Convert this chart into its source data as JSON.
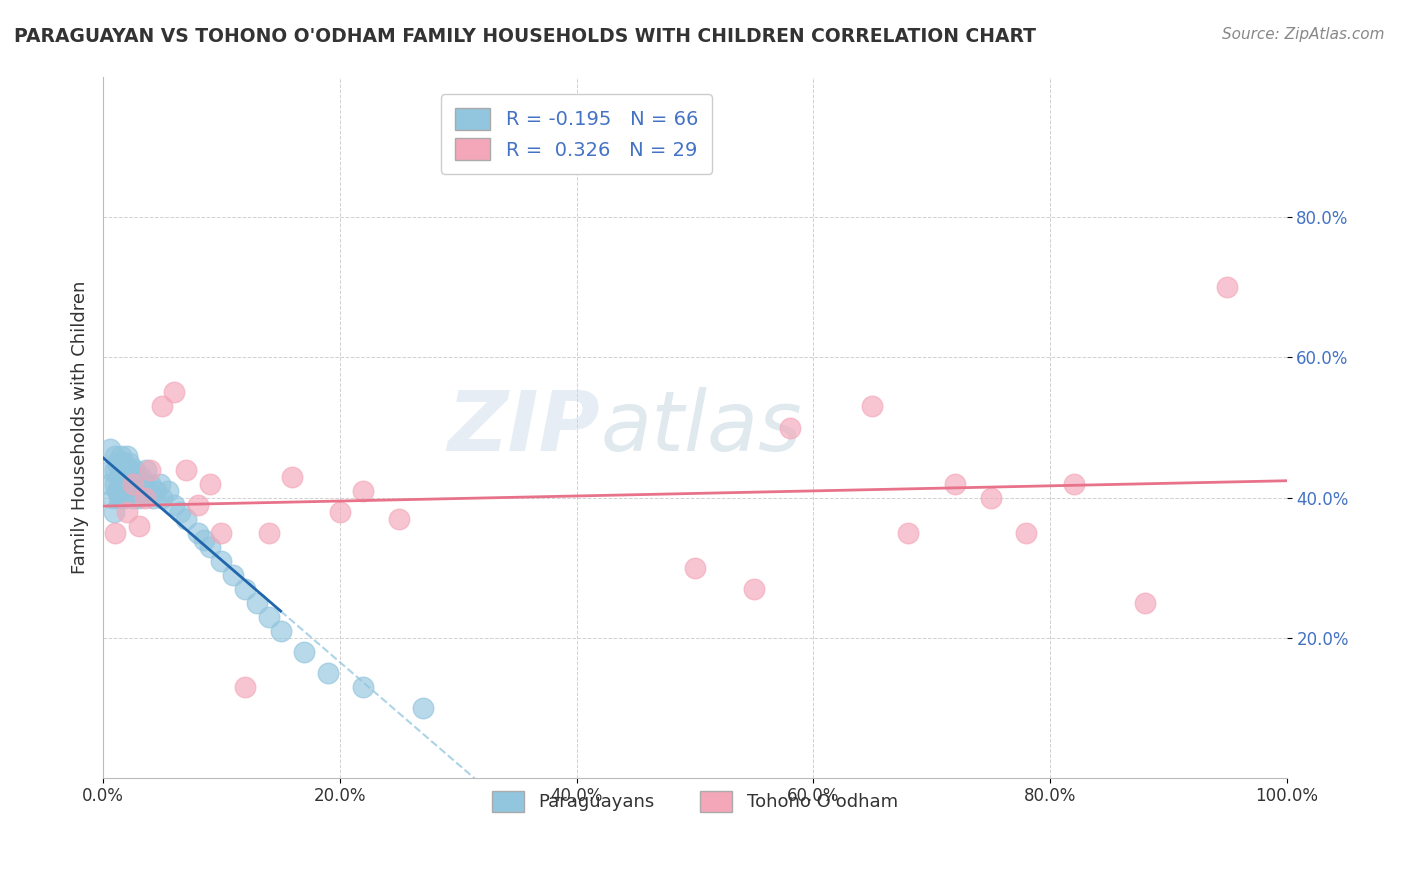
{
  "title": "PARAGUAYAN VS TOHONO O'ODHAM FAMILY HOUSEHOLDS WITH CHILDREN CORRELATION CHART",
  "source": "Source: ZipAtlas.com",
  "ylabel": "Family Households with Children",
  "xlabel": "",
  "legend_label_1": "Paraguayans",
  "legend_label_2": "Tohono O'odham",
  "R1": -0.195,
  "N1": 66,
  "R2": 0.326,
  "N2": 29,
  "blue_color": "#92c5de",
  "pink_color": "#f4a7b9",
  "blue_line_color": "#2166ac",
  "pink_line_color": "#e8728a",
  "dashed_line_color": "#92c5de",
  "xlim": [
    0.0,
    1.0
  ],
  "ylim": [
    0.0,
    1.0
  ],
  "xticks": [
    0.0,
    0.2,
    0.4,
    0.6,
    0.8,
    1.0
  ],
  "yticks": [
    0.2,
    0.4,
    0.6,
    0.8
  ],
  "xticklabels": [
    "0.0%",
    "20.0%",
    "40.0%",
    "60.0%",
    "80.0%",
    "100.0%"
  ],
  "yticklabels": [
    "20.0%",
    "40.0%",
    "60.0%",
    "80.0%"
  ],
  "blue_x": [
    0.005,
    0.006,
    0.007,
    0.008,
    0.009,
    0.01,
    0.01,
    0.01,
    0.012,
    0.012,
    0.013,
    0.013,
    0.014,
    0.015,
    0.015,
    0.015,
    0.016,
    0.016,
    0.017,
    0.017,
    0.018,
    0.018,
    0.019,
    0.02,
    0.02,
    0.02,
    0.021,
    0.022,
    0.022,
    0.023,
    0.024,
    0.025,
    0.025,
    0.026,
    0.027,
    0.028,
    0.029,
    0.03,
    0.03,
    0.032,
    0.033,
    0.035,
    0.036,
    0.038,
    0.04,
    0.042,
    0.045,
    0.048,
    0.05,
    0.055,
    0.06,
    0.065,
    0.07,
    0.08,
    0.085,
    0.09,
    0.1,
    0.11,
    0.12,
    0.13,
    0.14,
    0.15,
    0.17,
    0.19,
    0.22,
    0.27
  ],
  "blue_y": [
    0.42,
    0.47,
    0.44,
    0.4,
    0.38,
    0.46,
    0.44,
    0.42,
    0.45,
    0.41,
    0.43,
    0.4,
    0.42,
    0.46,
    0.44,
    0.4,
    0.43,
    0.41,
    0.45,
    0.42,
    0.44,
    0.4,
    0.43,
    0.46,
    0.44,
    0.41,
    0.43,
    0.45,
    0.42,
    0.44,
    0.41,
    0.43,
    0.4,
    0.42,
    0.44,
    0.41,
    0.43,
    0.42,
    0.4,
    0.43,
    0.41,
    0.42,
    0.44,
    0.41,
    0.42,
    0.4,
    0.41,
    0.42,
    0.4,
    0.41,
    0.39,
    0.38,
    0.37,
    0.35,
    0.34,
    0.33,
    0.31,
    0.29,
    0.27,
    0.25,
    0.23,
    0.21,
    0.18,
    0.15,
    0.13,
    0.1
  ],
  "pink_x": [
    0.01,
    0.02,
    0.025,
    0.03,
    0.035,
    0.04,
    0.05,
    0.06,
    0.07,
    0.08,
    0.09,
    0.1,
    0.12,
    0.14,
    0.16,
    0.2,
    0.22,
    0.25,
    0.5,
    0.55,
    0.58,
    0.65,
    0.68,
    0.72,
    0.75,
    0.78,
    0.82,
    0.88,
    0.95
  ],
  "pink_y": [
    0.35,
    0.38,
    0.42,
    0.36,
    0.4,
    0.44,
    0.53,
    0.55,
    0.44,
    0.39,
    0.42,
    0.35,
    0.13,
    0.35,
    0.43,
    0.38,
    0.41,
    0.37,
    0.3,
    0.27,
    0.5,
    0.53,
    0.35,
    0.42,
    0.4,
    0.35,
    0.42,
    0.25,
    0.7
  ],
  "watermark_zip": "ZIP",
  "watermark_atlas": "atlas",
  "background_color": "#ffffff",
  "plot_bg_color": "#ffffff",
  "grid_color": "#cccccc",
  "title_color": "#333333",
  "source_color": "#888888",
  "ytick_color": "#4472c4",
  "xtick_color": "#333333"
}
